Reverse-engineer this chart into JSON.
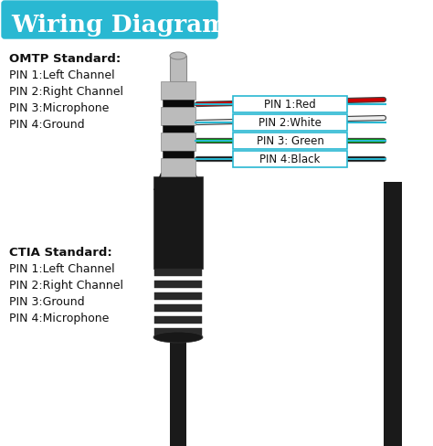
{
  "title": "Wiring Diagram",
  "title_bg_color": "#29B8D2",
  "title_text_color": "#FFFFFF",
  "bg_color": "#FFFFFF",
  "omtp_label": "OMTP Standard:",
  "omtp_pins": [
    "PIN 1:Left Channel",
    "PIN 2:Right Channel",
    "PIN 3:Microphone",
    "PIN 4:Ground"
  ],
  "ctia_label": "CTIA Standard:",
  "ctia_pins": [
    "PIN 1:Left Channel",
    "PIN 2:Right Channel",
    "PIN 3:Ground",
    "PIN 4:Microphone"
  ],
  "pin_labels": [
    "PIN 1:Red",
    "PIN 2:White",
    "PIN 3: Green",
    "PIN 4:Black"
  ],
  "pin_line_color": "#29B8D2",
  "pin_box_edge": "#29B8D2",
  "wire_colors": [
    "#CC0000",
    "#EEEEEE",
    "#009900",
    "#111111"
  ],
  "wire_outline_color": "#444444",
  "text_color": "#111111",
  "plug_dark": "#181818",
  "plug_mid": "#333333",
  "plug_metal_light": "#BBBBBB",
  "plug_metal_dark": "#888888",
  "plug_band": "#0A0A0A",
  "cable_color": "#1A1A1A",
  "ridge_color": "#2A2A2A"
}
